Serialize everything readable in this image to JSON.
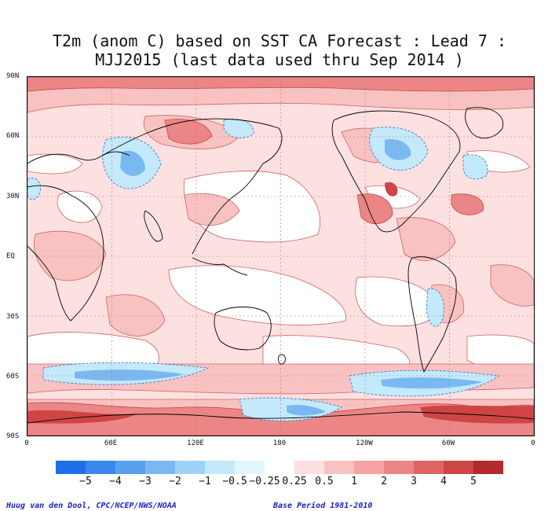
{
  "title": {
    "line1": "T2m (anom C) based on SST CA Forecast : Lead 7 :",
    "line2": "MJJ2015 (last data used thru Sep 2014 )"
  },
  "axes": {
    "lat_labels": [
      "90N",
      "60N",
      "30N",
      "EQ",
      "30S",
      "60S",
      "90S"
    ],
    "lon_labels": [
      "0",
      "60E",
      "120E",
      "180",
      "120W",
      "60W",
      "0"
    ]
  },
  "legend": {
    "labels": [
      "−5",
      "−4",
      "−3",
      "−2",
      "−1",
      "−0.5",
      "−0.25",
      "0.25",
      "0.5",
      "1",
      "2",
      "3",
      "4",
      "5"
    ],
    "colors": [
      "#1f6fe8",
      "#3a88ec",
      "#58a0ef",
      "#7ab8f2",
      "#9fd2f7",
      "#c4e9fb",
      "#e3f6fd",
      "#ffffff",
      "#fde1e1",
      "#f9c2c2",
      "#f4a2a2",
      "#ec8686",
      "#e06464",
      "#cf4444",
      "#b42a2a"
    ]
  },
  "colors": {
    "land_outline": "#000000",
    "contour": "#d06060",
    "grid": "#c07070"
  },
  "footer": {
    "credit": "Huug van den Dool, CPC/NCEP/NWS/NOAA",
    "base_period": "Base Period 1981-2010"
  }
}
